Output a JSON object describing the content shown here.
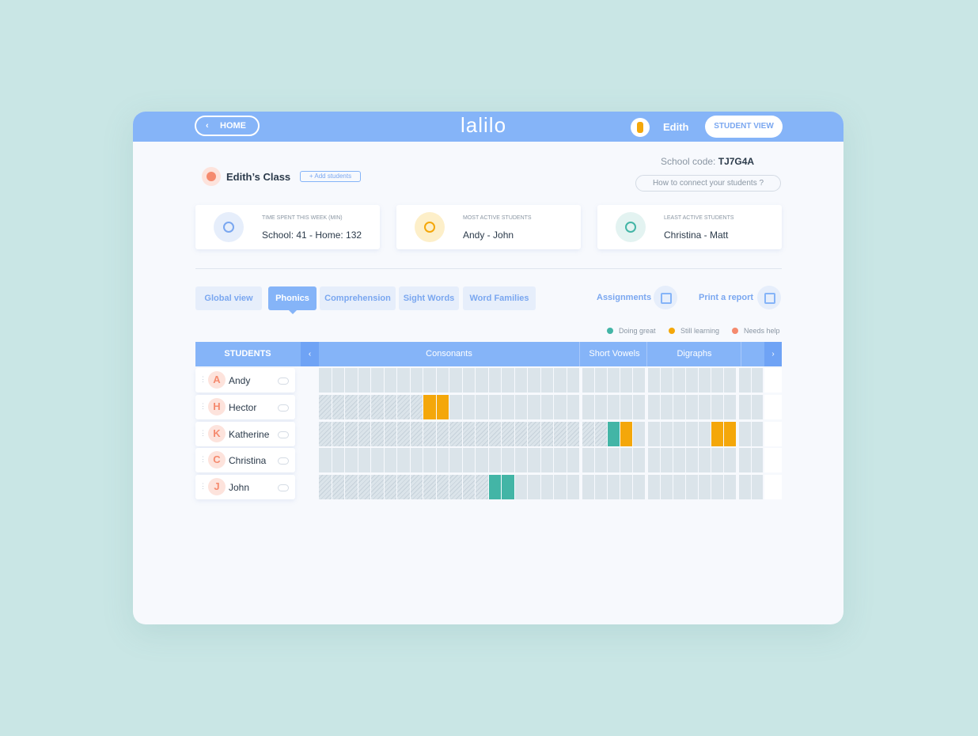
{
  "header": {
    "home": "HOME",
    "logo": "lalilo",
    "user": "Edith",
    "student_view": "STUDENT VIEW"
  },
  "school_code": {
    "label": "School code:",
    "code": "TJ7G4A"
  },
  "class": {
    "name": "Edith’s Class",
    "add": "+ Add students",
    "connect": "How to connect your students ?"
  },
  "stats": [
    {
      "label": "TIME SPENT THIS WEEK (MIN)",
      "value": "School: 41 - Home: 132"
    },
    {
      "label": "MOST ACTIVE STUDENTS",
      "value": "Andy - John"
    },
    {
      "label": "LEAST ACTIVE STUDENTS",
      "value": "Christina - Matt"
    }
  ],
  "tabs": [
    "Global view",
    "Phonics",
    "Comprehension",
    "Sight Words",
    "Word Families"
  ],
  "actions": [
    "Assignments",
    "Print a report"
  ],
  "legend": [
    {
      "label": "Doing great",
      "color": "#43b5a6"
    },
    {
      "label": "Still learning",
      "color": "#f4a70a"
    },
    {
      "label": "Needs help",
      "color": "#f58a6e"
    }
  ],
  "grid": {
    "students_header": "STUDENTS",
    "groups": [
      "Consonants",
      "Short Vowels",
      "Digraphs"
    ]
  },
  "students": [
    {
      "initial": "A",
      "name": "Andy"
    },
    {
      "initial": "H",
      "name": "Hector"
    },
    {
      "initial": "K",
      "name": "Katherine"
    },
    {
      "initial": "C",
      "name": "Christina"
    },
    {
      "initial": "J",
      "name": "John"
    }
  ]
}
